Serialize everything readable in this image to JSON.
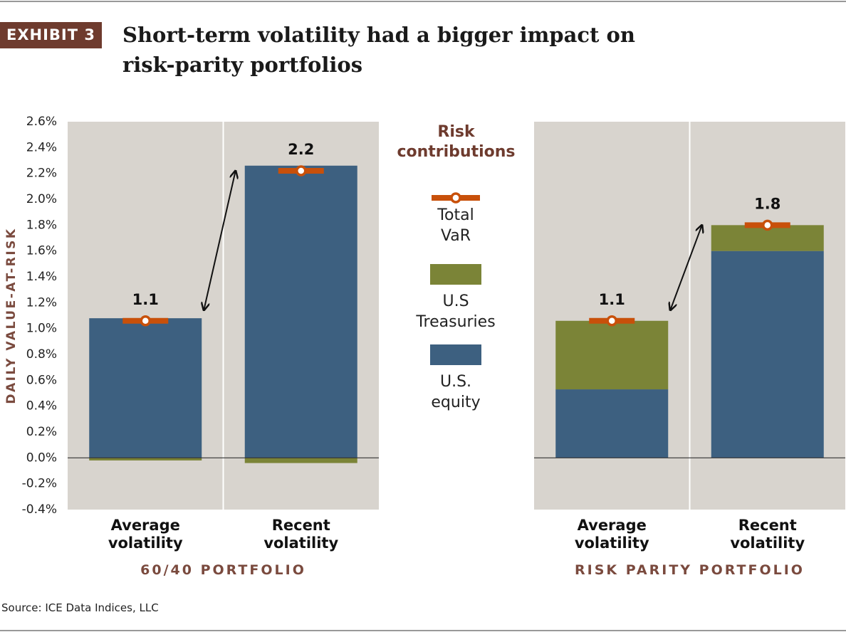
{
  "exhibit": "EXHIBIT 3",
  "title": "Short-term volatility had a bigger impact on risk-parity portfolios",
  "legend_title": "Risk contributions",
  "source": "Source: ICE Data Indices, LLC",
  "chart_data": [
    {
      "type": "bar",
      "stacked": true,
      "title": "60/40 PORTFOLIO",
      "y_label": "DAILY VALUE-AT-RISK",
      "categories": [
        "Average volatility",
        "Recent volatility"
      ],
      "series": [
        {
          "name": "U.S. equity",
          "color": "#3d6080",
          "values": [
            1.08,
            2.26
          ]
        },
        {
          "name": "U.S Treasuries",
          "color": "#7b8437",
          "values": [
            -0.02,
            -0.04
          ]
        },
        {
          "name": "Total VaR",
          "color": "#c8500a",
          "kind": "marker",
          "values": [
            1.06,
            2.22
          ],
          "value_labels": [
            "1.1",
            "2.2"
          ]
        }
      ],
      "ylim": [
        -0.4,
        2.6
      ],
      "yticks": [
        {
          "value": -0.4,
          "label": "-0.4%"
        },
        {
          "value": -0.2,
          "label": "-0.2%"
        },
        {
          "value": 0,
          "label": "0.0%"
        },
        {
          "value": 0.2,
          "label": "0.2%"
        },
        {
          "value": 0.4,
          "label": "0.4%"
        },
        {
          "value": 0.6,
          "label": "0.6%"
        },
        {
          "value": 0.8,
          "label": "0.8%"
        },
        {
          "value": 1.0,
          "label": "1.0%"
        },
        {
          "value": 1.2,
          "label": "1.2%"
        },
        {
          "value": 1.4,
          "label": "1.4%"
        },
        {
          "value": 1.6,
          "label": "1.6%"
        },
        {
          "value": 1.8,
          "label": "1.8%"
        },
        {
          "value": 2.0,
          "label": "2.0%"
        },
        {
          "value": 2.2,
          "label": "2.2%"
        },
        {
          "value": 2.4,
          "label": "2.4%"
        },
        {
          "value": 2.6,
          "label": "2.6%"
        }
      ]
    },
    {
      "type": "bar",
      "stacked": true,
      "title": "RISK PARITY PORTFOLIO",
      "categories": [
        "Average volatility",
        "Recent volatility"
      ],
      "series": [
        {
          "name": "U.S. equity",
          "color": "#3d6080",
          "values": [
            0.53,
            1.6
          ]
        },
        {
          "name": "U.S Treasuries",
          "color": "#7b8437",
          "values": [
            0.53,
            0.2
          ]
        },
        {
          "name": "Total VaR",
          "color": "#c8500a",
          "kind": "marker",
          "values": [
            1.06,
            1.8
          ],
          "value_labels": [
            "1.1",
            "1.8"
          ]
        }
      ],
      "ylim": [
        -0.4,
        2.6
      ]
    }
  ]
}
